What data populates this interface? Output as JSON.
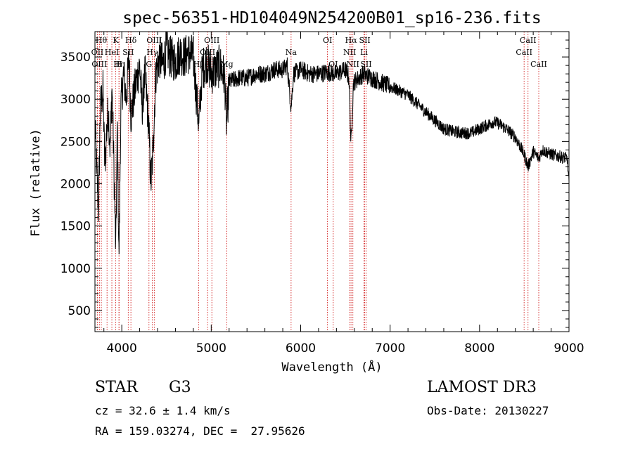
{
  "chart_data": {
    "type": "line",
    "title": "spec-56351-HD104049N254200B01_sp16-236.fits",
    "xlabel": "Wavelength (Å)",
    "ylabel": "Flux (relative)",
    "xlim": [
      3700,
      9000
    ],
    "ylim": [
      250,
      3800
    ],
    "xticks": [
      4000,
      5000,
      6000,
      7000,
      8000,
      9000
    ],
    "xminor_step": 200,
    "yticks": [
      500,
      1000,
      1500,
      2000,
      2500,
      3000,
      3500
    ],
    "yminor_step": 100,
    "grid": false,
    "spectrum_anchors": [
      [
        3700,
        2700
      ],
      [
        3720,
        2150
      ],
      [
        3740,
        1700
      ],
      [
        3760,
        2900
      ],
      [
        3790,
        3100
      ],
      [
        3810,
        2200
      ],
      [
        3830,
        2600
      ],
      [
        3850,
        2900
      ],
      [
        3870,
        2400
      ],
      [
        3890,
        3150
      ],
      [
        3910,
        2300
      ],
      [
        3933,
        1200
      ],
      [
        3950,
        2700
      ],
      [
        3968,
        1100
      ],
      [
        3990,
        2900
      ],
      [
        4020,
        3300
      ],
      [
        4050,
        3000
      ],
      [
        4080,
        3500
      ],
      [
        4102,
        2800
      ],
      [
        4130,
        3000
      ],
      [
        4160,
        3200
      ],
      [
        4200,
        3400
      ],
      [
        4227,
        2900
      ],
      [
        4260,
        3300
      ],
      [
        4300,
        2700
      ],
      [
        4325,
        2000
      ],
      [
        4345,
        2300
      ],
      [
        4380,
        3300
      ],
      [
        4420,
        3500
      ],
      [
        4460,
        3400
      ],
      [
        4500,
        3600
      ],
      [
        4540,
        3500
      ],
      [
        4600,
        3450
      ],
      [
        4650,
        3550
      ],
      [
        4700,
        3500
      ],
      [
        4750,
        3550
      ],
      [
        4800,
        3500
      ],
      [
        4861,
        2700
      ],
      [
        4900,
        3350
      ],
      [
        4950,
        3450
      ],
      [
        5000,
        3300
      ],
      [
        5050,
        3350
      ],
      [
        5100,
        3400
      ],
      [
        5150,
        3250
      ],
      [
        5172,
        2700
      ],
      [
        5200,
        3200
      ],
      [
        5300,
        3250
      ],
      [
        5400,
        3250
      ],
      [
        5500,
        3300
      ],
      [
        5600,
        3300
      ],
      [
        5700,
        3350
      ],
      [
        5800,
        3350
      ],
      [
        5850,
        3400
      ],
      [
        5893,
        2900
      ],
      [
        5920,
        3300
      ],
      [
        6000,
        3350
      ],
      [
        6100,
        3300
      ],
      [
        6200,
        3300
      ],
      [
        6300,
        3320
      ],
      [
        6400,
        3300
      ],
      [
        6500,
        3350
      ],
      [
        6540,
        3250
      ],
      [
        6563,
        2450
      ],
      [
        6590,
        3200
      ],
      [
        6650,
        3250
      ],
      [
        6700,
        3300
      ],
      [
        6800,
        3250
      ],
      [
        6900,
        3200
      ],
      [
        7000,
        3150
      ],
      [
        7100,
        3100
      ],
      [
        7200,
        3050
      ],
      [
        7300,
        2950
      ],
      [
        7400,
        2850
      ],
      [
        7500,
        2750
      ],
      [
        7600,
        2650
      ],
      [
        7700,
        2620
      ],
      [
        7800,
        2600
      ],
      [
        7900,
        2600
      ],
      [
        8000,
        2650
      ],
      [
        8100,
        2700
      ],
      [
        8150,
        2730
      ],
      [
        8200,
        2720
      ],
      [
        8300,
        2650
      ],
      [
        8400,
        2550
      ],
      [
        8450,
        2450
      ],
      [
        8498,
        2350
      ],
      [
        8542,
        2200
      ],
      [
        8600,
        2380
      ],
      [
        8662,
        2300
      ],
      [
        8700,
        2400
      ],
      [
        8800,
        2350
      ],
      [
        8900,
        2320
      ],
      [
        8980,
        2300
      ],
      [
        9000,
        2000
      ]
    ],
    "line_markers": [
      {
        "x": 3727,
        "label": "OII",
        "row": 1
      },
      {
        "x": 3750,
        "label": "OIII",
        "row": 2
      },
      {
        "x": 3771,
        "label": "Hθ",
        "row": 0
      },
      {
        "x": 3835,
        "label": "",
        "row": -1
      },
      {
        "x": 3889,
        "label": "HeI",
        "row": 1
      },
      {
        "x": 3933,
        "label": "K",
        "row": 0
      },
      {
        "x": 3968,
        "label": "H",
        "row": 2
      },
      {
        "x": 3970,
        "label": "Hη",
        "row": 2
      },
      {
        "x": 4072,
        "label": "SII",
        "row": 1
      },
      {
        "x": 4102,
        "label": "Hδ",
        "row": 0
      },
      {
        "x": 4304,
        "label": "G",
        "row": 2
      },
      {
        "x": 4340,
        "label": "Hγ",
        "row": 1
      },
      {
        "x": 4363,
        "label": "OIII",
        "row": 0
      },
      {
        "x": 4861,
        "label": "Hβ",
        "row": 2
      },
      {
        "x": 4959,
        "label": "OIII",
        "row": 1
      },
      {
        "x": 5007,
        "label": "OIII",
        "row": 0
      },
      {
        "x": 5175,
        "label": "Mg",
        "row": 2
      },
      {
        "x": 5893,
        "label": "Na",
        "row": 1
      },
      {
        "x": 6300,
        "label": "OI",
        "row": 0
      },
      {
        "x": 6364,
        "label": "OI",
        "row": 2
      },
      {
        "x": 6548,
        "label": "NII",
        "row": 1
      },
      {
        "x": 6563,
        "label": "Hα",
        "row": 0
      },
      {
        "x": 6584,
        "label": "NII",
        "row": 2
      },
      {
        "x": 6708,
        "label": "Li",
        "row": 1
      },
      {
        "x": 6717,
        "label": "SII",
        "row": 0
      },
      {
        "x": 6731,
        "label": "SII",
        "row": 2
      },
      {
        "x": 8498,
        "label": "CaII",
        "row": 1
      },
      {
        "x": 8542,
        "label": "CaII",
        "row": 0
      },
      {
        "x": 8662,
        "label": "CaII",
        "row": 2
      }
    ],
    "line_color": "#000000",
    "marker_color": "#cc0000"
  },
  "info": {
    "object_class": "STAR",
    "subclass": "G3",
    "survey": "LAMOST DR3",
    "redshift": "cz = 32.6 ± 1.4 km/s",
    "obs_date": "Obs-Date: 20130227",
    "coords": "RA = 159.03274, DEC =  27.95626"
  }
}
